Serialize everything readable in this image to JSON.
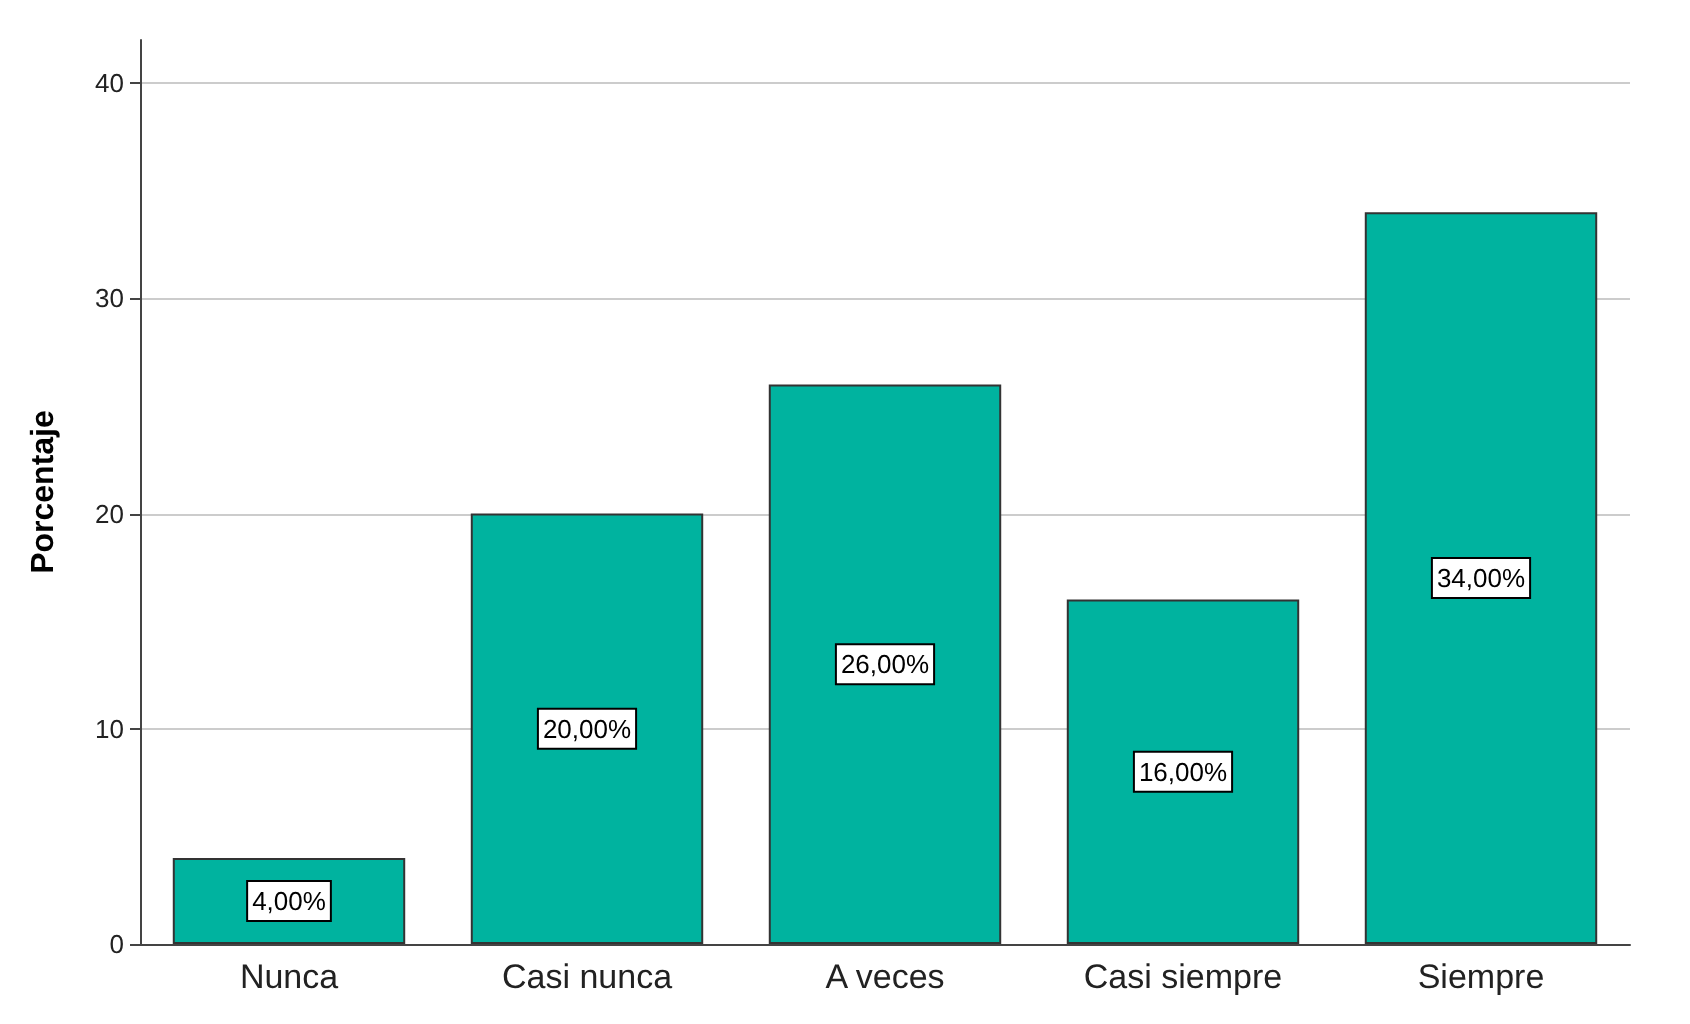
{
  "chart_data": {
    "type": "bar",
    "ylabel": "Porcentaje",
    "categories": [
      "Nunca",
      "Casi nunca",
      "A veces",
      "Casi siempre",
      "Siempre"
    ],
    "values": [
      4,
      20,
      26,
      16,
      34
    ],
    "value_labels": [
      "4,00%",
      "20,00%",
      "26,00%",
      "16,00%",
      "34,00%"
    ],
    "color": "#00b39f",
    "ylim": [
      0,
      42
    ],
    "yticks": [
      0,
      10,
      20,
      30,
      40
    ],
    "grid": "y"
  }
}
